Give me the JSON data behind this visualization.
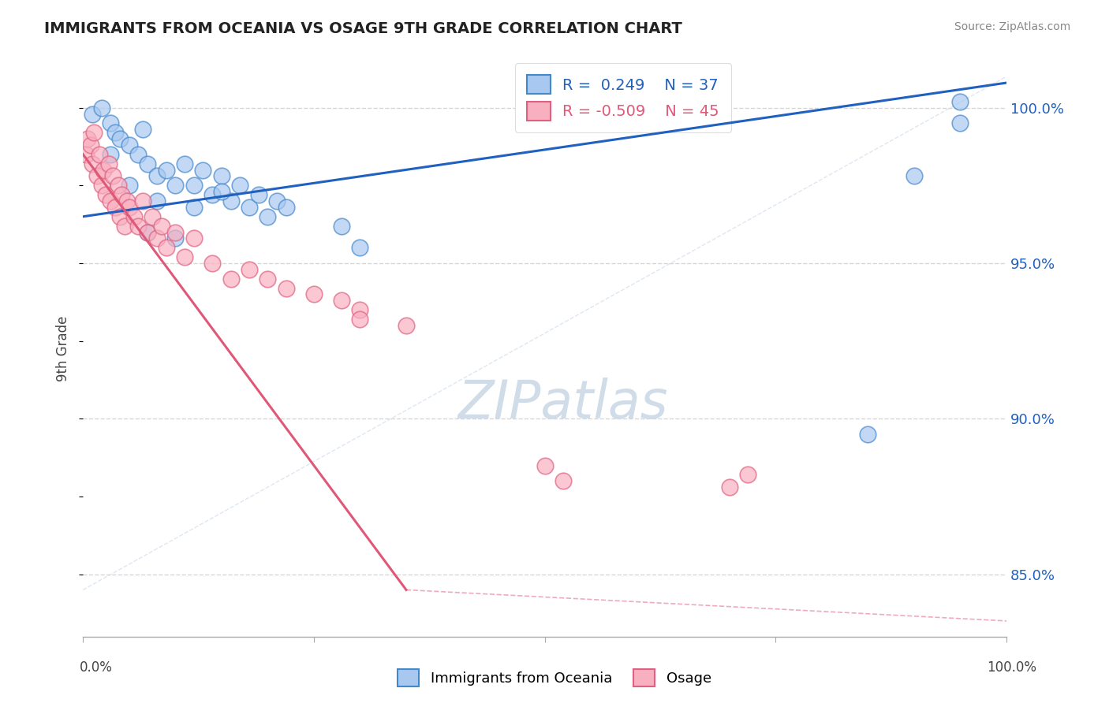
{
  "title": "IMMIGRANTS FROM OCEANIA VS OSAGE 9TH GRADE CORRELATION CHART",
  "source": "Source: ZipAtlas.com",
  "ylabel": "9th Grade",
  "xlim": [
    0,
    100
  ],
  "ylim": [
    83.0,
    101.5
  ],
  "yticks": [
    85.0,
    90.0,
    95.0,
    100.0
  ],
  "ytick_labels": [
    "85.0%",
    "90.0%",
    "95.0%",
    "100.0%"
  ],
  "legend_blue_r": "0.249",
  "legend_blue_n": "37",
  "legend_pink_r": "-0.509",
  "legend_pink_n": "45",
  "legend_label_blue": "Immigrants from Oceania",
  "legend_label_pink": "Osage",
  "blue_fill": "#a8c8f0",
  "pink_fill": "#f8b0c0",
  "blue_edge": "#4488cc",
  "pink_edge": "#e06080",
  "blue_line_color": "#2060c0",
  "pink_line_color": "#e05878",
  "blue_scatter_x": [
    1.0,
    2.0,
    3.0,
    3.5,
    4.0,
    5.0,
    6.0,
    6.5,
    7.0,
    8.0,
    9.0,
    10.0,
    11.0,
    12.0,
    13.0,
    14.0,
    15.0,
    16.0,
    17.0,
    18.0,
    19.0,
    20.0,
    21.0,
    22.0,
    3.0,
    8.0,
    12.0,
    15.0,
    5.0,
    28.0,
    7.0,
    10.0,
    30.0,
    85.0,
    90.0,
    95.0,
    95.0
  ],
  "blue_scatter_y": [
    99.8,
    100.0,
    99.5,
    99.2,
    99.0,
    98.8,
    98.5,
    99.3,
    98.2,
    97.8,
    98.0,
    97.5,
    98.2,
    97.5,
    98.0,
    97.2,
    97.8,
    97.0,
    97.5,
    96.8,
    97.2,
    96.5,
    97.0,
    96.8,
    98.5,
    97.0,
    96.8,
    97.3,
    97.5,
    96.2,
    96.0,
    95.8,
    95.5,
    89.5,
    97.8,
    100.2,
    99.5
  ],
  "pink_scatter_x": [
    0.3,
    0.5,
    0.8,
    1.0,
    1.2,
    1.5,
    1.8,
    2.0,
    2.2,
    2.5,
    2.8,
    3.0,
    3.2,
    3.5,
    3.8,
    4.0,
    4.2,
    4.5,
    4.8,
    5.0,
    5.5,
    6.0,
    6.5,
    7.0,
    7.5,
    8.0,
    8.5,
    9.0,
    10.0,
    11.0,
    12.0,
    14.0,
    16.0,
    18.0,
    20.0,
    22.0,
    25.0,
    28.0,
    30.0,
    35.0,
    50.0,
    52.0,
    70.0,
    72.0,
    30.0
  ],
  "pink_scatter_y": [
    98.5,
    99.0,
    98.8,
    98.2,
    99.2,
    97.8,
    98.5,
    97.5,
    98.0,
    97.2,
    98.2,
    97.0,
    97.8,
    96.8,
    97.5,
    96.5,
    97.2,
    96.2,
    97.0,
    96.8,
    96.5,
    96.2,
    97.0,
    96.0,
    96.5,
    95.8,
    96.2,
    95.5,
    96.0,
    95.2,
    95.8,
    95.0,
    94.5,
    94.8,
    94.5,
    94.2,
    94.0,
    93.8,
    93.5,
    93.0,
    88.5,
    88.0,
    87.8,
    88.2,
    93.2
  ],
  "blue_line_x0": 0,
  "blue_line_x1": 100,
  "blue_line_y0": 96.5,
  "blue_line_y1": 100.8,
  "pink_line_x0": 0,
  "pink_line_x1": 35,
  "pink_line_y0": 98.5,
  "pink_line_y1": 84.5,
  "pink_dash_x0": 35,
  "pink_dash_x1": 100,
  "pink_dash_y0": 84.5,
  "pink_dash_y1": 83.5,
  "diagonal_x0": 0,
  "diagonal_x1": 100,
  "diagonal_y0": 84.5,
  "diagonal_y1": 101.0,
  "watermark_text": "ZIPatlas",
  "watermark_color": "#d0dce8",
  "background_color": "#ffffff",
  "grid_color": "#cccccc"
}
